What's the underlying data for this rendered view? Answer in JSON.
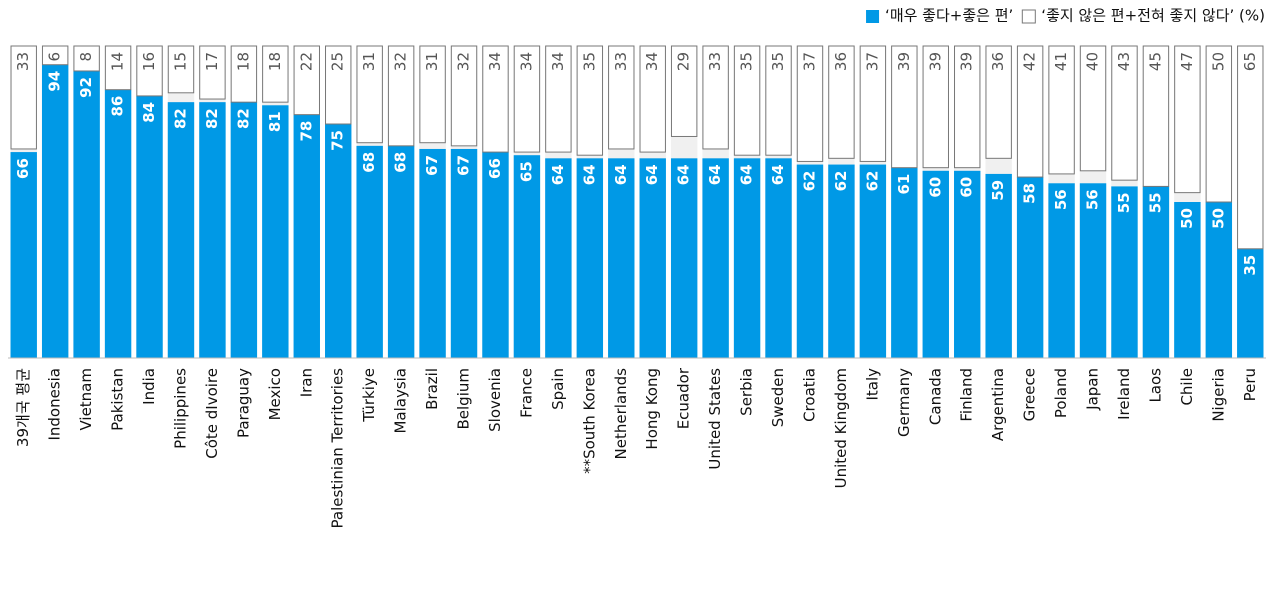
{
  "chart_data": {
    "type": "bar",
    "stacked": true,
    "categories": [
      "39개국 평균",
      "Indonesia",
      "Vietnam",
      "Pakistan",
      "India",
      "Philippines",
      "Côte dIvoire",
      "Paraguay",
      "Mexico",
      "Iran",
      "Palestinian Territories",
      "Türkiye",
      "Malaysia",
      "Brazil",
      "Belgium",
      "Slovenia",
      "France",
      "Spain",
      "**South Korea",
      "Netherlands",
      "Hong Kong",
      "Ecuador",
      "United States",
      "Serbia",
      "Sweden",
      "Croatia",
      "United Kingdom",
      "Italy",
      "Germany",
      "Canada",
      "Finland",
      "Argentina",
      "Greece",
      "Poland",
      "Japan",
      "Ireland",
      "Laos",
      "Chile",
      "Nigeria",
      "Peru"
    ],
    "series": [
      {
        "name": "‘매우 좋다+좋은 편’",
        "color": "#0099e6",
        "values": [
          66,
          94,
          92,
          86,
          84,
          82,
          82,
          82,
          81,
          78,
          75,
          68,
          68,
          67,
          67,
          66,
          65,
          64,
          64,
          64,
          64,
          64,
          64,
          64,
          64,
          62,
          62,
          62,
          61,
          60,
          60,
          59,
          58,
          56,
          56,
          55,
          55,
          50,
          50,
          35
        ]
      },
      {
        "name": "‘좋지 않은 편+전혀 좋지 않다’ (%)",
        "color": "#ffffff",
        "values": [
          33,
          6,
          8,
          14,
          16,
          15,
          17,
          18,
          18,
          22,
          25,
          31,
          32,
          31,
          32,
          34,
          34,
          34,
          35,
          33,
          34,
          29,
          33,
          35,
          35,
          37,
          36,
          37,
          39,
          39,
          39,
          36,
          42,
          41,
          40,
          43,
          45,
          47,
          50,
          65
        ]
      }
    ],
    "ylim": [
      0,
      100
    ],
    "legend": "top-right"
  }
}
